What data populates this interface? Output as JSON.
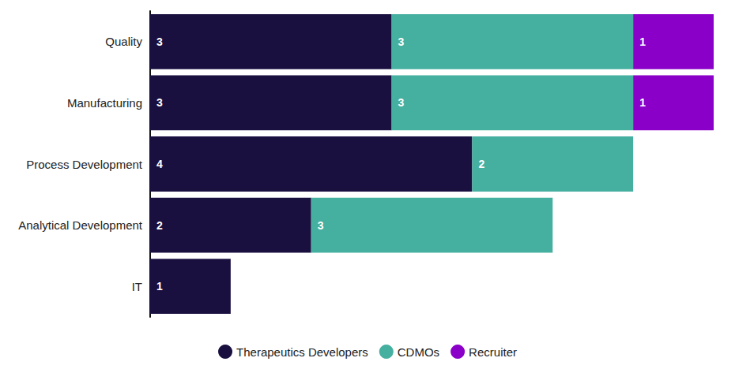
{
  "chart_data": {
    "type": "bar",
    "orientation": "horizontal",
    "stacked": true,
    "data_labels": true,
    "tick_labels": "y",
    "grid": false,
    "legend": "bottom",
    "categories": [
      "Quality",
      "Manufacturing",
      "Process Development",
      "Analytical Development",
      "IT"
    ],
    "xlim": [
      0,
      7
    ],
    "series": [
      {
        "name": "Therapeutics Developers",
        "color": "#1a1040",
        "values": [
          3,
          3,
          4,
          2,
          1
        ]
      },
      {
        "name": "CDMOs",
        "color": "#45afa0",
        "values": [
          3,
          3,
          2,
          3,
          null
        ]
      },
      {
        "name": "Recruiter",
        "color": "#8a00c8",
        "values": [
          1,
          1,
          null,
          null,
          null
        ]
      }
    ]
  }
}
